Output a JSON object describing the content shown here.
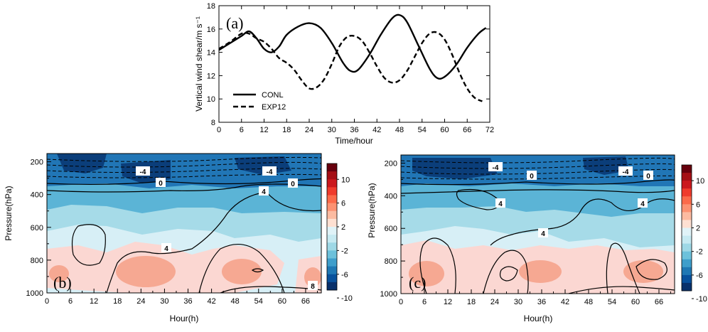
{
  "chart_data": [
    {
      "panel": "(a)",
      "type": "line",
      "xlabel": "Time/hour",
      "ylabel": "Vertical wind shear/m s⁻¹",
      "xlim": [
        0,
        72
      ],
      "ylim": [
        8,
        18
      ],
      "xticks": [
        0,
        6,
        12,
        18,
        24,
        30,
        36,
        42,
        48,
        54,
        60,
        66,
        72
      ],
      "yticks": [
        8,
        10,
        12,
        14,
        16,
        18
      ],
      "series": [
        {
          "name": "CONL",
          "style": "solid",
          "x": [
            0,
            3,
            6,
            8,
            10,
            12,
            14,
            16,
            18,
            21,
            24,
            27,
            30,
            33,
            35,
            37,
            40,
            43,
            46,
            48,
            50,
            53,
            56,
            58,
            60,
            63,
            66,
            69,
            71
          ],
          "y": [
            14.2,
            14.8,
            15.4,
            15.8,
            15.2,
            14.3,
            14.0,
            14.5,
            15.5,
            16.2,
            16.5,
            16.1,
            14.8,
            13.1,
            12.4,
            12.5,
            13.8,
            15.5,
            16.9,
            17.2,
            16.6,
            14.6,
            12.6,
            11.8,
            11.9,
            12.9,
            14.4,
            15.6,
            16.1
          ]
        },
        {
          "name": "EXP12",
          "style": "dashed",
          "x": [
            0,
            3,
            6,
            8,
            10,
            12,
            14,
            16,
            18,
            20,
            22,
            24,
            26,
            28,
            30,
            32,
            34,
            36,
            38,
            40,
            42,
            44,
            46,
            48,
            50,
            52,
            54,
            56,
            58,
            60,
            62,
            64,
            66,
            68,
            70
          ],
          "y": [
            14.3,
            14.9,
            15.6,
            15.6,
            15.2,
            14.9,
            14.3,
            13.5,
            13.1,
            12.5,
            11.6,
            10.9,
            11.0,
            11.7,
            13.0,
            14.5,
            15.3,
            15.4,
            15.0,
            14.0,
            12.8,
            11.8,
            11.4,
            11.6,
            12.4,
            13.6,
            14.8,
            15.6,
            15.7,
            15.1,
            13.8,
            12.2,
            10.9,
            10.1,
            9.8
          ]
        }
      ],
      "legend": {
        "position": "bottom-left",
        "entries": [
          "CONL",
          "EXP12"
        ]
      }
    },
    {
      "panel": "(b)",
      "type": "heatmap",
      "xlabel": "Hour(h)",
      "ylabel": "Pressure(hPa)",
      "xlim": [
        0,
        70
      ],
      "ylim": [
        1000,
        150
      ],
      "xticks": [
        0,
        6,
        12,
        18,
        24,
        30,
        36,
        42,
        48,
        54,
        60,
        66
      ],
      "yticks": [
        200,
        400,
        600,
        800,
        1000
      ],
      "contour_labels": [
        "-4",
        "-4",
        "0",
        "0",
        "4",
        "4",
        "8"
      ],
      "colorbar_ticks": [
        "10",
        "6",
        "2",
        "-2",
        "-6",
        "-10"
      ]
    },
    {
      "panel": "(c)",
      "type": "heatmap",
      "xlabel": "Hour(h)",
      "ylabel": "Pressure(hPa)",
      "xlim": [
        0,
        70
      ],
      "ylim": [
        1000,
        150
      ],
      "xticks": [
        0,
        6,
        12,
        18,
        24,
        30,
        36,
        42,
        48,
        54,
        60,
        66
      ],
      "yticks": [
        200,
        400,
        600,
        800,
        1000
      ],
      "contour_labels": [
        "-4",
        "-4",
        "0",
        "0",
        "4",
        "4",
        "4"
      ],
      "colorbar_ticks": [
        "10",
        "6",
        "2",
        "-2",
        "-6",
        "-10"
      ]
    }
  ],
  "colorbar_colors": [
    "#67000d",
    "#a50f15",
    "#cb181d",
    "#ef3b2c",
    "#fb6a4a",
    "#fc9272",
    "#fcbba1",
    "#fee0d2",
    "#e0f3f8",
    "#c6eaf2",
    "#9ed8e6",
    "#6cc1db",
    "#3e9ecb",
    "#1f78b4",
    "#08519c",
    "#08306b"
  ],
  "colors": {
    "line": "#000000",
    "pink_light": "#fbd7d2",
    "pink_mid": "#f6a892",
    "blue_pale": "#d7eff6",
    "blue_light": "#a6dbe8",
    "blue_mid": "#5bb4d6",
    "blue_dark": "#2176b6",
    "blue_darkest": "#0b3e7a"
  }
}
